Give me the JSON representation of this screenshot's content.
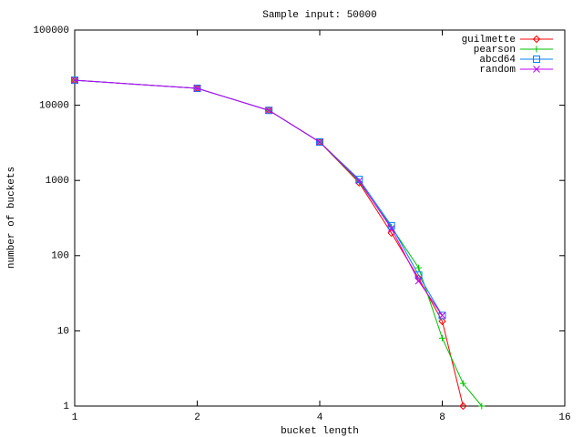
{
  "chart_data": {
    "type": "line",
    "title": "Sample input: 50000",
    "x_label": "bucket length",
    "y_label": "number of buckets",
    "x": [
      1,
      2,
      3,
      4,
      5,
      6,
      7,
      8,
      9,
      10
    ],
    "series": [
      {
        "name": "guilmette",
        "color": "#ff0000",
        "marker": "diamond",
        "values": [
          21500,
          16800,
          8550,
          3240,
          930,
          200,
          50,
          13.4,
          1,
          null
        ]
      },
      {
        "name": "pearson",
        "color": "#00c000",
        "marker": "plus",
        "values": [
          21500,
          16800,
          8550,
          3240,
          960,
          240,
          69,
          8,
          2,
          1
        ]
      },
      {
        "name": "abcd64",
        "color": "#0080ff",
        "marker": "square",
        "values": [
          21500,
          16800,
          8550,
          3240,
          1030,
          250,
          55,
          16,
          null,
          null
        ]
      },
      {
        "name": "random",
        "color": "#c000ff",
        "marker": "cross",
        "values": [
          21500,
          16800,
          8550,
          3240,
          990,
          230,
          46,
          16,
          null,
          null
        ]
      }
    ],
    "xscale": "log",
    "yscale": "log",
    "xlim": [
      1,
      16
    ],
    "xticks": [
      1,
      2,
      4,
      8,
      16
    ],
    "ylim": [
      1,
      100000
    ],
    "yticks": [
      1,
      10,
      100,
      1000,
      10000,
      100000
    ],
    "grid": false,
    "legend": "top-right"
  }
}
